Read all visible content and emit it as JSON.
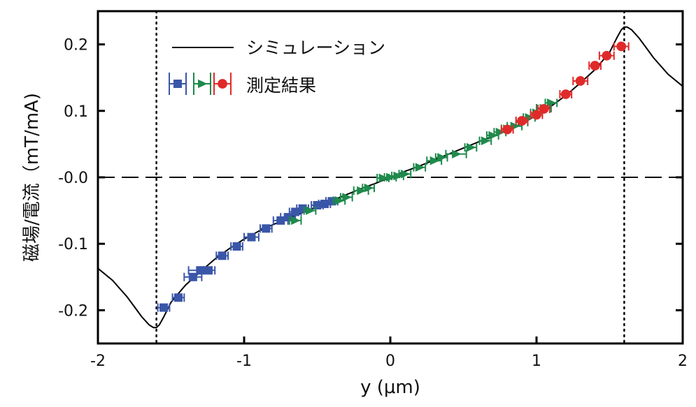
{
  "chart_data": {
    "type": "scatter",
    "xlabel": "y (μm)",
    "ylabel": "磁場/電流（mT/mA)",
    "xlim": [
      -2,
      2
    ],
    "ylim": [
      -0.25,
      0.25
    ],
    "xticks": [
      -2,
      -1,
      0,
      1,
      2
    ],
    "xtick_labels": [
      "-2",
      "-1",
      "0",
      "1",
      "2"
    ],
    "yticks": [
      -0.2,
      -0.1,
      0.0,
      0.1,
      0.2
    ],
    "ytick_labels": [
      "-0.2",
      "-0.1",
      "-0.0",
      "0.1",
      "0.2"
    ],
    "grid": false,
    "legend_position": "top-left",
    "reference_lines": {
      "horizontal_dashed_y": 0.0,
      "vertical_dotted_x": [
        -1.6,
        1.6
      ]
    },
    "simulation": {
      "name": "シミュレーション",
      "color": "#000000",
      "x": [
        -2.0,
        -1.9,
        -1.8,
        -1.75,
        -1.7,
        -1.65,
        -1.62,
        -1.6,
        -1.58,
        -1.55,
        -1.5,
        -1.45,
        -1.4,
        -1.3,
        -1.2,
        -1.1,
        -1.0,
        -0.9,
        -0.8,
        -0.7,
        -0.6,
        -0.5,
        -0.4,
        -0.3,
        -0.2,
        -0.1,
        0.0,
        0.1,
        0.2,
        0.3,
        0.4,
        0.5,
        0.6,
        0.7,
        0.8,
        0.9,
        1.0,
        1.1,
        1.2,
        1.3,
        1.4,
        1.45,
        1.5,
        1.55,
        1.58,
        1.6,
        1.62,
        1.65,
        1.7,
        1.75,
        1.8,
        1.9,
        2.0
      ],
      "y": [
        -0.137,
        -0.155,
        -0.18,
        -0.195,
        -0.21,
        -0.222,
        -0.226,
        -0.226,
        -0.222,
        -0.21,
        -0.188,
        -0.175,
        -0.162,
        -0.142,
        -0.123,
        -0.107,
        -0.093,
        -0.081,
        -0.071,
        -0.062,
        -0.053,
        -0.044,
        -0.035,
        -0.026,
        -0.017,
        -0.009,
        0.0,
        0.009,
        0.017,
        0.026,
        0.035,
        0.044,
        0.053,
        0.062,
        0.071,
        0.081,
        0.093,
        0.107,
        0.123,
        0.142,
        0.162,
        0.175,
        0.188,
        0.21,
        0.222,
        0.226,
        0.226,
        0.222,
        0.21,
        0.195,
        0.18,
        0.155,
        0.137
      ]
    },
    "series": [
      {
        "name": "測定結果",
        "marker": "square",
        "color": "#3a56a8",
        "x": [
          -1.55,
          -1.45,
          -1.35,
          -1.3,
          -1.25,
          -1.15,
          -1.05,
          -0.95,
          -0.85,
          -0.75,
          -0.7,
          -0.65,
          -0.6,
          -0.5,
          -0.45,
          -0.4
        ],
        "y": [
          -0.196,
          -0.181,
          -0.15,
          -0.14,
          -0.14,
          -0.118,
          -0.104,
          -0.09,
          -0.077,
          -0.065,
          -0.06,
          -0.052,
          -0.047,
          -0.042,
          -0.04,
          -0.036
        ],
        "xerr": [
          0.04,
          0.04,
          0.06,
          0.08,
          0.05,
          0.04,
          0.04,
          0.05,
          0.04,
          0.05,
          0.05,
          0.04,
          0.04,
          0.04,
          0.04,
          0.04
        ]
      },
      {
        "name": "測定結果",
        "marker": "triangle-right",
        "color": "#1f8a4c",
        "x": [
          -0.65,
          -0.55,
          -0.35,
          -0.3,
          -0.2,
          -0.15,
          -0.05,
          0.0,
          0.05,
          0.1,
          0.2,
          0.3,
          0.35,
          0.45,
          0.55,
          0.65,
          0.7,
          0.75,
          0.8,
          0.85,
          0.9,
          0.95,
          1.0,
          1.05,
          1.1
        ],
        "y": [
          -0.065,
          -0.05,
          -0.035,
          -0.03,
          -0.02,
          -0.016,
          -0.001,
          0.0,
          0.002,
          0.005,
          0.015,
          0.025,
          0.03,
          0.035,
          0.045,
          0.055,
          0.063,
          0.068,
          0.073,
          0.077,
          0.083,
          0.09,
          0.097,
          0.104,
          0.112
        ],
        "xerr": [
          0.04,
          0.04,
          0.04,
          0.04,
          0.05,
          0.04,
          0.04,
          0.04,
          0.04,
          0.04,
          0.04,
          0.05,
          0.04,
          0.07,
          0.04,
          0.04,
          0.04,
          0.04,
          0.04,
          0.05,
          0.04,
          0.04,
          0.04,
          0.05,
          0.04
        ]
      },
      {
        "name": "測定結果",
        "marker": "circle",
        "color": "#e02a2a",
        "x": [
          0.8,
          0.9,
          1.0,
          1.05,
          1.2,
          1.3,
          1.4,
          1.48,
          1.58
        ],
        "y": [
          0.072,
          0.085,
          0.094,
          0.103,
          0.125,
          0.145,
          0.168,
          0.183,
          0.197
        ],
        "xerr": [
          0.04,
          0.04,
          0.04,
          0.04,
          0.04,
          0.05,
          0.04,
          0.05,
          0.05
        ]
      }
    ]
  }
}
